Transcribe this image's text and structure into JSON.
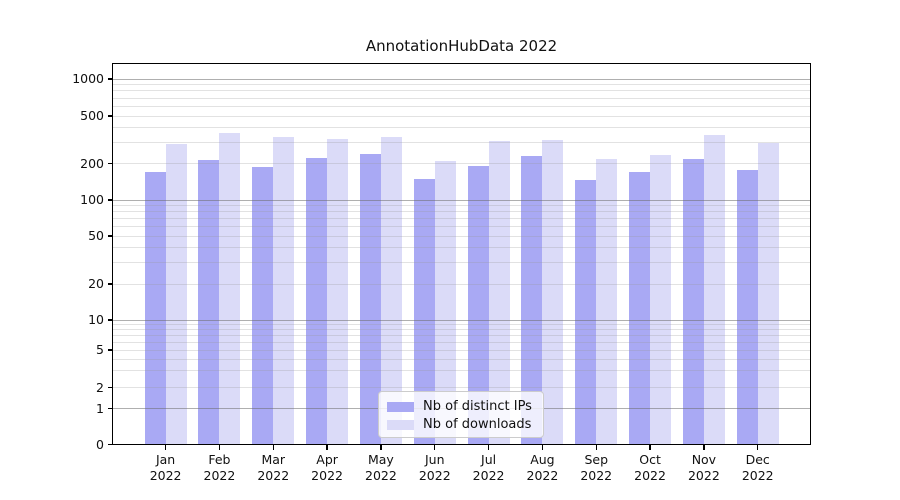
{
  "chart_data": {
    "type": "bar",
    "title": "AnnotationHubData 2022",
    "categories": [
      "Jan",
      "Feb",
      "Mar",
      "Apr",
      "May",
      "Jun",
      "Jul",
      "Aug",
      "Sep",
      "Oct",
      "Nov",
      "Dec"
    ],
    "x_year_label": "2022",
    "series": [
      {
        "name": "Nb of distinct IPs",
        "color": "#a9a9f4",
        "values": [
          171,
          215,
          187,
          223,
          238,
          148,
          192,
          232,
          147,
          169,
          218,
          177
        ]
      },
      {
        "name": "Nb of downloads",
        "color": "#dbdbf8",
        "values": [
          290,
          358,
          335,
          320,
          334,
          210,
          308,
          313,
          220,
          236,
          349,
          297
        ]
      }
    ],
    "yticks": [
      0,
      1,
      2,
      5,
      10,
      20,
      50,
      100,
      200,
      500,
      1000
    ],
    "yscale": "log-like with 0 baseline",
    "ylim": [
      0,
      1350
    ],
    "xlabel": "",
    "ylabel": "",
    "grid": true,
    "legend_position": "lower center",
    "colors": {
      "axis": "#000000",
      "grid_major": "#b9b9b9",
      "grid_minor": "#e7e7e7",
      "text": "#111111",
      "background": "#ffffff"
    }
  }
}
